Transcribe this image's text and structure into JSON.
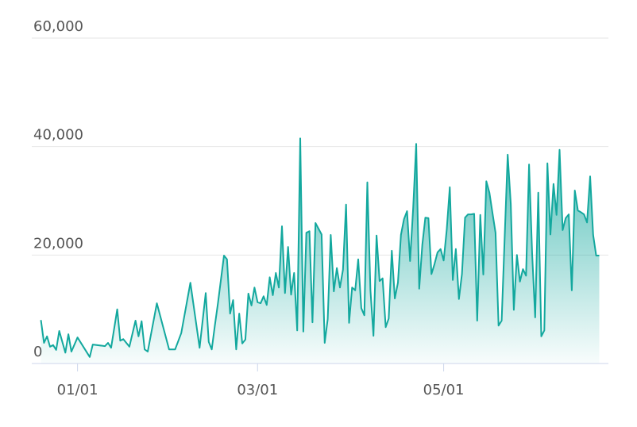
{
  "chart_data": {
    "type": "area",
    "color": "#13a89e",
    "x": [
      "12/20",
      "12/21",
      "12/22",
      "12/23",
      "12/24",
      "12/25",
      "12/26",
      "12/28",
      "12/29",
      "12/30",
      "01/01",
      "01/05",
      "01/06",
      "01/10",
      "01/11",
      "01/12",
      "01/14",
      "01/15",
      "01/16",
      "01/18",
      "01/20",
      "01/21",
      "01/22",
      "01/23",
      "01/24",
      "01/27",
      "01/31",
      "02/02",
      "02/04",
      "02/07",
      "02/10",
      "02/12",
      "02/13",
      "02/14",
      "02/15",
      "02/16",
      "02/18",
      "02/19",
      "02/20",
      "02/21",
      "02/22",
      "02/23",
      "02/24",
      "02/25",
      "02/26",
      "02/27",
      "02/28",
      "03/01",
      "03/02",
      "03/03",
      "03/04",
      "03/05",
      "03/06",
      "03/07",
      "03/08",
      "03/09",
      "03/10",
      "03/11",
      "03/12",
      "03/13",
      "03/14",
      "03/15",
      "03/16",
      "03/17",
      "03/18",
      "03/19",
      "03/20",
      "03/22",
      "03/23",
      "03/24",
      "03/25",
      "03/26",
      "03/27",
      "03/28",
      "03/29",
      "03/30",
      "03/31",
      "04/01",
      "04/02",
      "04/03",
      "04/04",
      "04/05",
      "04/06",
      "04/07",
      "04/08",
      "04/09",
      "04/10",
      "04/11",
      "04/12",
      "04/13",
      "04/14",
      "04/15",
      "04/16",
      "04/17",
      "04/18",
      "04/19",
      "04/20",
      "04/21",
      "04/22",
      "04/23",
      "04/24",
      "04/25",
      "04/26",
      "04/27",
      "04/28",
      "04/29",
      "04/30",
      "05/01",
      "05/02",
      "05/03",
      "05/04",
      "05/05",
      "05/06",
      "05/07",
      "05/08",
      "05/09",
      "05/10",
      "05/11",
      "05/12",
      "05/13",
      "05/14",
      "05/15",
      "05/16",
      "05/17",
      "05/18",
      "05/19",
      "05/20",
      "05/21",
      "05/22",
      "05/23",
      "05/24",
      "05/25",
      "05/26",
      "05/27",
      "05/28",
      "05/29",
      "05/30",
      "05/31",
      "06/01",
      "06/02",
      "06/03",
      "06/04",
      "06/05",
      "06/06",
      "06/07",
      "06/08",
      "06/09",
      "06/10",
      "06/11",
      "06/12",
      "06/13",
      "06/14",
      "06/15",
      "06/16",
      "06/17",
      "06/18",
      "06/19",
      "06/20",
      "06/21"
    ],
    "values": [
      8000,
      3800,
      5000,
      3100,
      3400,
      2500,
      6000,
      2000,
      5400,
      2200,
      4800,
      1200,
      3500,
      3200,
      3800,
      2900,
      10000,
      4200,
      4500,
      3100,
      7900,
      5000,
      7800,
      2600,
      2200,
      11100,
      2600,
      2600,
      5600,
      14900,
      2900,
      13000,
      4000,
      2600,
      7000,
      11000,
      19900,
      19200,
      9200,
      11700,
      2600,
      9200,
      3700,
      4400,
      12900,
      10700,
      14000,
      11300,
      11100,
      12400,
      10800,
      15900,
      12600,
      16700,
      14000,
      25300,
      13000,
      21500,
      12700,
      16700,
      6100,
      41500,
      5900,
      24100,
      24400,
      7600,
      25900,
      23800,
      3800,
      8200,
      23700,
      13300,
      17600,
      14000,
      17300,
      29300,
      7500,
      14000,
      13500,
      19200,
      10200,
      8900,
      33400,
      13500,
      5100,
      23600,
      15200,
      15700,
      6700,
      8300,
      20800,
      12000,
      14900,
      23700,
      26600,
      28100,
      18900,
      28700,
      40500,
      13800,
      21900,
      26900,
      26800,
      16500,
      18300,
      20500,
      21100,
      19000,
      24600,
      32500,
      15400,
      21100,
      11900,
      16500,
      26900,
      27500,
      27500,
      27600,
      7900,
      27400,
      16400,
      33600,
      31500,
      27800,
      24100,
      7000,
      7900,
      23300,
      38500,
      29400,
      9900,
      20000,
      15100,
      17400,
      16200,
      36700,
      20200,
      8500,
      31500,
      5000,
      6100,
      36900,
      23800,
      33100,
      27400,
      39400,
      24600,
      26800,
      27500,
      13500,
      31900,
      28200,
      27900,
      27500,
      26000,
      34500,
      23700,
      19900,
      19900
    ],
    "xlim": [
      "12/17",
      "06/24"
    ],
    "xticks": [
      "01/01",
      "03/01",
      "05/01"
    ],
    "ylim": [
      0,
      60000
    ],
    "yticks": [
      0,
      {
        "value": 20000,
        "label": "20,000"
      },
      {
        "value": 40000,
        "label": "40,000"
      },
      {
        "value": 60000,
        "label": "60,000"
      }
    ],
    "grid": true
  }
}
